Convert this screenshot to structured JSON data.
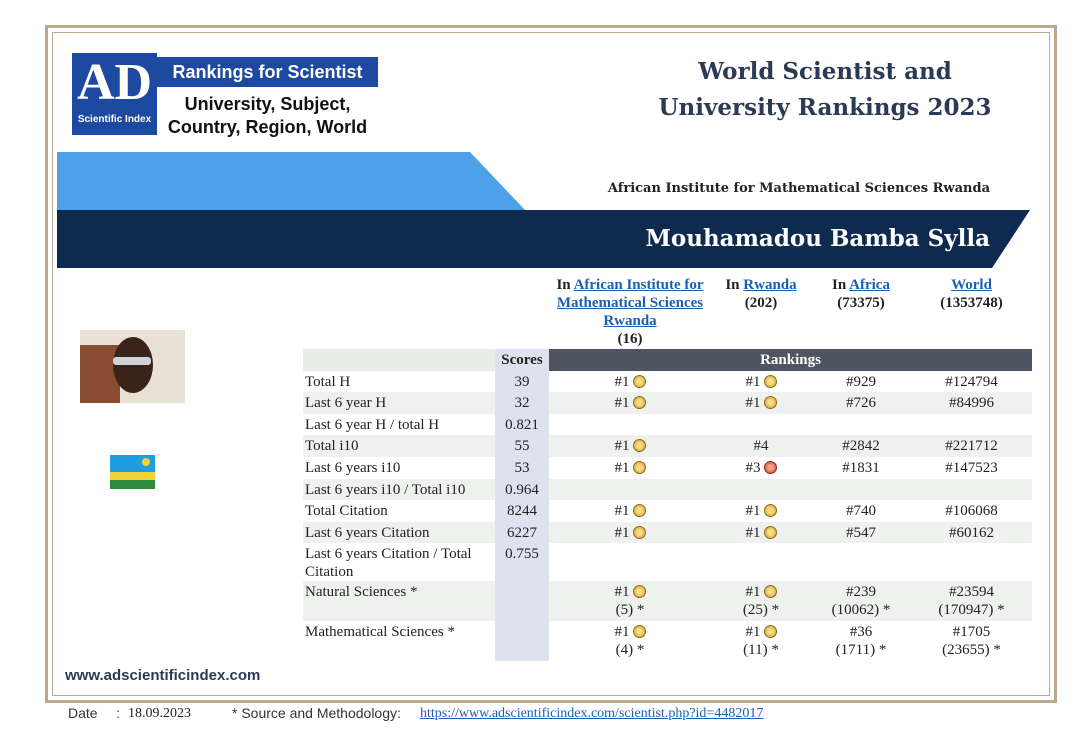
{
  "logo": {
    "mark": "AD",
    "sub": "Scientific Index",
    "banner": "Rankings for Scientist",
    "lines": [
      "University, Subject,",
      "Country, Region, World"
    ]
  },
  "header": {
    "title_lines": [
      "World Scientist and",
      "University Rankings 2023"
    ],
    "institution": "African Institute for Mathematical Sciences Rwanda",
    "name": "Mouhamadou Bamba Sylla"
  },
  "columns": [
    {
      "prefix": "In",
      "link": "African Institute for Mathematical Sciences Rwanda",
      "count": "(16)"
    },
    {
      "prefix": "In",
      "link": "Rwanda",
      "count": "(202)"
    },
    {
      "prefix": "In",
      "link": "Africa",
      "count": "(73375)"
    },
    {
      "link": "World",
      "count": "(1353748)"
    }
  ],
  "table": {
    "score_header": "Scores",
    "rank_header": "Rankings",
    "rows": [
      {
        "label": "Total H",
        "score": 39,
        "ranks": [
          {
            "rank": "#1",
            "medal": "gold"
          },
          {
            "rank": "#1",
            "medal": "gold"
          },
          {
            "rank": "#929"
          },
          {
            "rank": "#124794"
          }
        ]
      },
      {
        "label": "Last 6 year H",
        "score": 32,
        "ranks": [
          {
            "rank": "#1",
            "medal": "gold"
          },
          {
            "rank": "#1",
            "medal": "gold"
          },
          {
            "rank": "#726"
          },
          {
            "rank": "#84996"
          }
        ]
      },
      {
        "label": "Last 6 year H / total H",
        "score": 0.821,
        "ranks": []
      },
      {
        "label": "Total i10",
        "score": 55,
        "ranks": [
          {
            "rank": "#1",
            "medal": "gold"
          },
          {
            "rank": "#4"
          },
          {
            "rank": "#2842"
          },
          {
            "rank": "#221712"
          }
        ]
      },
      {
        "label": "Last 6 years i10",
        "score": 53,
        "ranks": [
          {
            "rank": "#1",
            "medal": "gold"
          },
          {
            "rank": "#3",
            "medal": "bronze"
          },
          {
            "rank": "#1831"
          },
          {
            "rank": "#147523"
          }
        ]
      },
      {
        "label": "Last 6 years i10 / Total i10",
        "score": 0.964,
        "ranks": []
      },
      {
        "label": "Total Citation",
        "score": 8244,
        "ranks": [
          {
            "rank": "#1",
            "medal": "gold"
          },
          {
            "rank": "#1",
            "medal": "gold"
          },
          {
            "rank": "#740"
          },
          {
            "rank": "#106068"
          }
        ]
      },
      {
        "label": "Last 6 years Citation",
        "score": 6227,
        "ranks": [
          {
            "rank": "#1",
            "medal": "gold"
          },
          {
            "rank": "#1",
            "medal": "gold"
          },
          {
            "rank": "#547"
          },
          {
            "rank": "#60162"
          }
        ]
      },
      {
        "label": "Last 6 years Citation / Total Citation",
        "score": 0.755,
        "ranks": []
      },
      {
        "label": "Natural Sciences *",
        "ranks": [
          {
            "rank": "#1",
            "medal": "gold",
            "sub": "(5) *"
          },
          {
            "rank": "#1",
            "medal": "gold",
            "sub": "(25) *"
          },
          {
            "rank": "#239",
            "sub": "(10062) *"
          },
          {
            "rank": "#23594",
            "sub": "(170947) *"
          }
        ]
      },
      {
        "label": "Mathematical Sciences *",
        "ranks": [
          {
            "rank": "#1",
            "medal": "gold",
            "sub": "(4) *"
          },
          {
            "rank": "#1",
            "medal": "gold",
            "sub": "(11) *"
          },
          {
            "rank": "#36",
            "sub": "(1711) *"
          },
          {
            "rank": "#1705",
            "sub": "(23655) *"
          }
        ]
      }
    ]
  },
  "website": "www.adscientificindex.com",
  "footer": {
    "date_label": "Date",
    "separator": ":",
    "date": "18.09.2023",
    "source_label": "* Source and Methodology:",
    "url": "https://www.adscientificindex.com/scientist.php?id=4482017"
  }
}
